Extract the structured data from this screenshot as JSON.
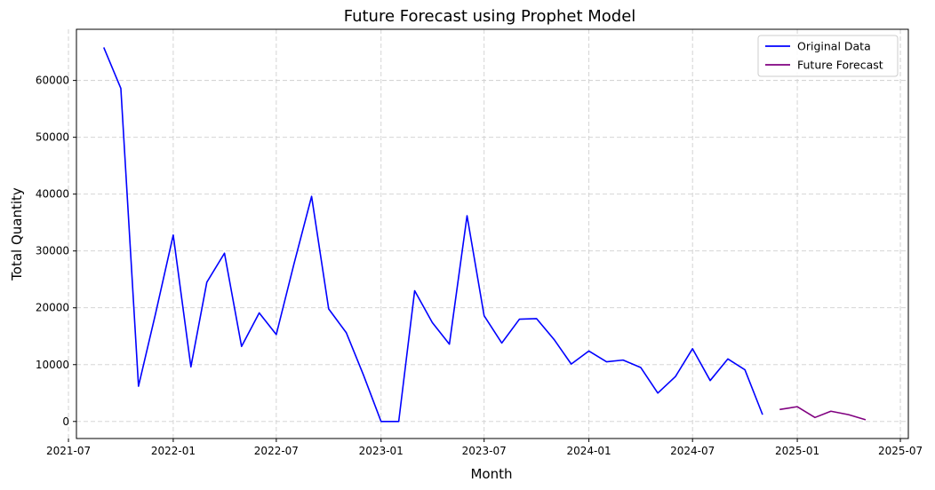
{
  "chart_data": {
    "type": "line",
    "title": "Future Forecast using Prophet Model",
    "xlabel": "Month",
    "ylabel": "Total Quantity",
    "grid": true,
    "legend_position": "top-right",
    "xlim": [
      "2021-07-15",
      "2025-07-15"
    ],
    "ylim": [
      -3000,
      69000
    ],
    "x_ticks": [
      "2021-07",
      "2022-01",
      "2022-07",
      "2023-01",
      "2023-07",
      "2024-01",
      "2024-07",
      "2025-01",
      "2025-07"
    ],
    "y_ticks": [
      0,
      10000,
      20000,
      30000,
      40000,
      50000,
      60000
    ],
    "series": [
      {
        "name": "Original Data",
        "color": "#0000ff",
        "x": [
          "2021-09-01",
          "2021-10-01",
          "2021-11-01",
          "2021-12-01",
          "2022-01-01",
          "2022-02-01",
          "2022-03-01",
          "2022-04-01",
          "2022-05-01",
          "2022-06-01",
          "2022-07-01",
          "2022-08-01",
          "2022-09-01",
          "2022-10-01",
          "2022-11-01",
          "2022-12-01",
          "2023-01-01",
          "2023-02-01",
          "2023-03-01",
          "2023-04-01",
          "2023-05-01",
          "2023-06-01",
          "2023-07-01",
          "2023-08-01",
          "2023-09-01",
          "2023-10-01",
          "2023-11-01",
          "2023-12-01",
          "2024-01-01",
          "2024-02-01",
          "2024-03-01",
          "2024-04-01",
          "2024-05-01",
          "2024-06-01",
          "2024-07-01",
          "2024-08-01",
          "2024-09-01",
          "2024-10-01",
          "2024-11-01"
        ],
        "y": [
          65800,
          58600,
          6200,
          19000,
          32800,
          9600,
          24500,
          29600,
          13200,
          19100,
          15300,
          27700,
          39600,
          19800,
          15600,
          8200,
          0,
          0,
          23000,
          17400,
          13600,
          36200,
          18600,
          13800,
          18000,
          18100,
          14400,
          10100,
          12400,
          10500,
          10800,
          9500,
          5000,
          7900,
          12800,
          7200,
          11000,
          9100,
          1200
        ]
      },
      {
        "name": "Future Forecast",
        "color": "#800080",
        "x": [
          "2024-12-01",
          "2025-01-01",
          "2025-02-01",
          "2025-03-01",
          "2025-04-01",
          "2025-05-01"
        ],
        "y": [
          2100,
          2600,
          700,
          1800,
          1200,
          300
        ]
      }
    ]
  }
}
